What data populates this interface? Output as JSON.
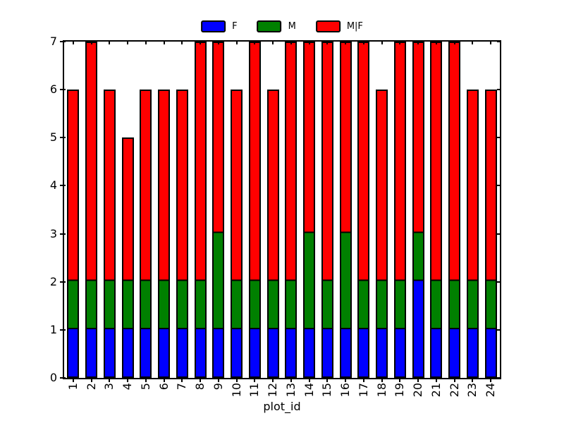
{
  "chart_data": {
    "type": "bar",
    "stacked": true,
    "xlabel": "plot_id",
    "ylabel": "",
    "ylim": [
      0,
      7
    ],
    "yticks": [
      0,
      1,
      2,
      3,
      4,
      5,
      6,
      7
    ],
    "grid": false,
    "legend_position": "upper center",
    "bar_edge_color": "#000000",
    "categories": [
      "1",
      "2",
      "3",
      "4",
      "5",
      "6",
      "7",
      "8",
      "9",
      "10",
      "11",
      "12",
      "13",
      "14",
      "15",
      "16",
      "17",
      "18",
      "19",
      "20",
      "21",
      "22",
      "23",
      "24"
    ],
    "series": [
      {
        "name": "F",
        "color": "#0000ff",
        "values": [
          1,
          1,
          1,
          1,
          1,
          1,
          1,
          1,
          1,
          1,
          1,
          1,
          1,
          1,
          1,
          1,
          1,
          1,
          1,
          2,
          1,
          1,
          1,
          1
        ]
      },
      {
        "name": "M",
        "color": "#008000",
        "values": [
          1,
          1,
          1,
          1,
          1,
          1,
          1,
          1,
          2,
          1,
          1,
          1,
          1,
          2,
          1,
          2,
          1,
          1,
          1,
          1,
          1,
          1,
          1,
          1
        ]
      },
      {
        "name": "M|F",
        "color": "#ff0000",
        "values": [
          4,
          5,
          4,
          3,
          4,
          4,
          4,
          5,
          4,
          4,
          5,
          4,
          5,
          4,
          5,
          4,
          5,
          4,
          5,
          4,
          5,
          5,
          4,
          4
        ]
      }
    ],
    "totals": [
      6,
      7,
      6,
      5,
      6,
      6,
      6,
      7,
      7,
      6,
      7,
      6,
      7,
      7,
      7,
      7,
      7,
      6,
      7,
      7,
      7,
      7,
      6,
      6
    ]
  }
}
